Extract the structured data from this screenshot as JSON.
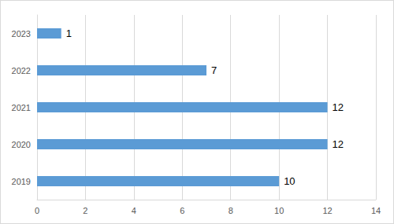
{
  "chart_data": {
    "type": "bar",
    "orientation": "horizontal",
    "categories": [
      "2019",
      "2020",
      "2021",
      "2022",
      "2023"
    ],
    "values": [
      10,
      12,
      12,
      7,
      1
    ],
    "color": "#5b9bd5",
    "xlim": [
      0,
      14
    ],
    "xticks": [
      0,
      2,
      4,
      6,
      8,
      10,
      12,
      14
    ],
    "grid": true,
    "data_labels": true
  }
}
